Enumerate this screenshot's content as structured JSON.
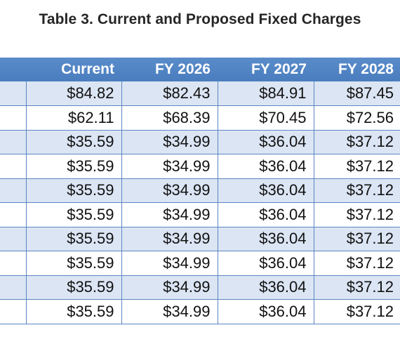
{
  "title": "Table 3. Current and Proposed Fixed Charges",
  "columns": [
    "Current",
    "FY 2026",
    "FY 2027",
    "FY 2028"
  ],
  "rows": [
    [
      "$84.82",
      "$82.43",
      "$84.91",
      "$87.45"
    ],
    [
      "$62.11",
      "$68.39",
      "$70.45",
      "$72.56"
    ],
    [
      "$35.59",
      "$34.99",
      "$36.04",
      "$37.12"
    ],
    [
      "$35.59",
      "$34.99",
      "$36.04",
      "$37.12"
    ],
    [
      "$35.59",
      "$34.99",
      "$36.04",
      "$37.12"
    ],
    [
      "$35.59",
      "$34.99",
      "$36.04",
      "$37.12"
    ],
    [
      "$35.59",
      "$34.99",
      "$36.04",
      "$37.12"
    ],
    [
      "$35.59",
      "$34.99",
      "$36.04",
      "$37.12"
    ],
    [
      "$35.59",
      "$34.99",
      "$36.04",
      "$37.12"
    ],
    [
      "$35.59",
      "$34.99",
      "$36.04",
      "$37.12"
    ]
  ],
  "colors": {
    "header": "#4a7dbe",
    "band": "#dbe5f3",
    "grid": "#5b86c2"
  }
}
